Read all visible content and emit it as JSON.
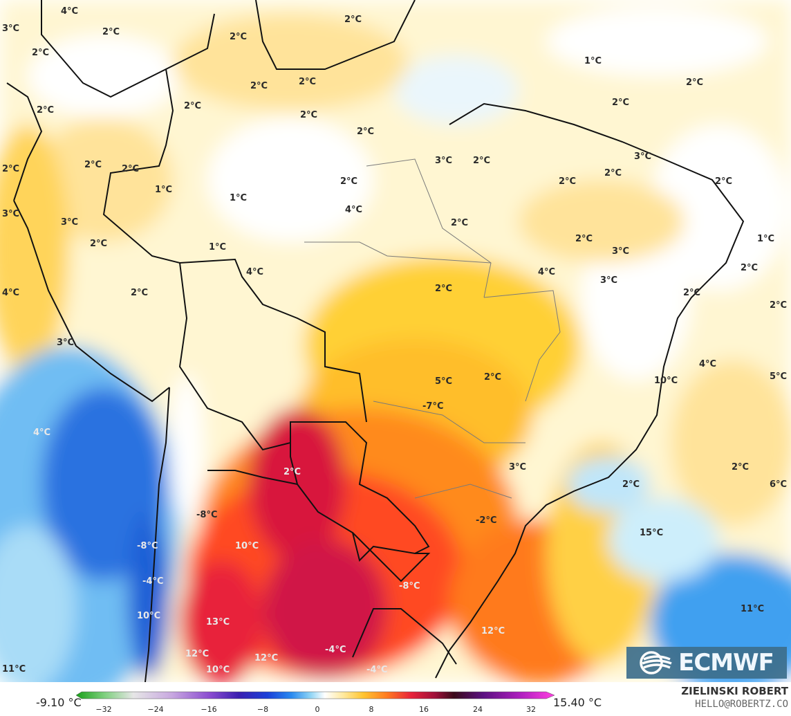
{
  "map": {
    "colors": {
      "ocean_cold_deep": "#1f5fd6",
      "ocean_cold": "#5aa8f0",
      "ocean_cool": "#a9dcf7",
      "neutral": "#ffffff",
      "warm_light": "#fff4c8",
      "warm": "#ffe08a",
      "warmer": "#ffc531",
      "orange": "#ff9a1f",
      "red_orange": "#ff5a22",
      "red": "#e8233a",
      "crimson": "#c80b4e",
      "border": "#111111"
    },
    "temperature_labels": [
      {
        "text": "4°C",
        "tone": "dark"
      },
      {
        "text": "3°C",
        "tone": "dark"
      },
      {
        "text": "2°C",
        "tone": "dark"
      },
      {
        "text": "2°C",
        "tone": "dark"
      },
      {
        "text": "2°C",
        "tone": "dark"
      },
      {
        "text": "2°C",
        "tone": "dark"
      },
      {
        "text": "1°C",
        "tone": "dark"
      },
      {
        "text": "2°C",
        "tone": "dark"
      },
      {
        "text": "2°C",
        "tone": "dark"
      },
      {
        "text": "2°C",
        "tone": "dark"
      },
      {
        "text": "2°C",
        "tone": "dark"
      },
      {
        "text": "2°C",
        "tone": "dark"
      },
      {
        "text": "2°C",
        "tone": "dark"
      },
      {
        "text": "2°C",
        "tone": "dark"
      },
      {
        "text": "2°C",
        "tone": "dark"
      },
      {
        "text": "3°C",
        "tone": "dark"
      },
      {
        "text": "2°C",
        "tone": "dark"
      },
      {
        "text": "2°C",
        "tone": "dark"
      },
      {
        "text": "3°C",
        "tone": "dark"
      },
      {
        "text": "2°C",
        "tone": "dark"
      },
      {
        "text": "2°C",
        "tone": "dark"
      },
      {
        "text": "2°C",
        "tone": "dark"
      },
      {
        "text": "2°C",
        "tone": "dark"
      },
      {
        "text": "2°C",
        "tone": "dark"
      },
      {
        "text": "2°C",
        "tone": "dark"
      },
      {
        "text": "1°C",
        "tone": "dark"
      },
      {
        "text": "1°C",
        "tone": "dark"
      },
      {
        "text": "4°C",
        "tone": "dark"
      },
      {
        "text": "3°C",
        "tone": "dark"
      },
      {
        "text": "3°C",
        "tone": "dark"
      },
      {
        "text": "2°C",
        "tone": "dark"
      },
      {
        "text": "2°C",
        "tone": "dark"
      },
      {
        "text": "2°C",
        "tone": "dark"
      },
      {
        "text": "1°C",
        "tone": "dark"
      },
      {
        "text": "1°C",
        "tone": "dark"
      },
      {
        "text": "3°C",
        "tone": "dark"
      },
      {
        "text": "2°C",
        "tone": "dark"
      },
      {
        "text": "4°C",
        "tone": "dark"
      },
      {
        "text": "4°C",
        "tone": "dark"
      },
      {
        "text": "3°C",
        "tone": "dark"
      },
      {
        "text": "2°C",
        "tone": "dark"
      },
      {
        "text": "2°C",
        "tone": "dark"
      },
      {
        "text": "4°C",
        "tone": "dark"
      },
      {
        "text": "2°C",
        "tone": "dark"
      },
      {
        "text": "2°C",
        "tone": "dark"
      },
      {
        "text": "3°C",
        "tone": "dark"
      },
      {
        "text": "4°C",
        "tone": "dark"
      },
      {
        "text": "5°C",
        "tone": "dark"
      },
      {
        "text": "5°C",
        "tone": "dark"
      },
      {
        "text": "2°C",
        "tone": "dark"
      },
      {
        "text": "-7°C",
        "tone": "light"
      },
      {
        "text": "10°C",
        "tone": "light"
      },
      {
        "text": "4°C",
        "tone": "dark"
      },
      {
        "text": "2°C",
        "tone": "dark"
      },
      {
        "text": "3°C",
        "tone": "dark"
      },
      {
        "text": "2°C",
        "tone": "dark"
      },
      {
        "text": "6°C",
        "tone": "dark"
      },
      {
        "text": "2°C",
        "tone": "dark"
      },
      {
        "text": "-2°C",
        "tone": "dark"
      },
      {
        "text": "-8°C",
        "tone": "light"
      },
      {
        "text": "15°C",
        "tone": "light"
      },
      {
        "text": "-8°C",
        "tone": "light"
      },
      {
        "text": "10°C",
        "tone": "light"
      },
      {
        "text": "-4°C",
        "tone": "dark"
      },
      {
        "text": "-8°C",
        "tone": "light"
      },
      {
        "text": "11°C",
        "tone": "light"
      },
      {
        "text": "10°C",
        "tone": "light"
      },
      {
        "text": "13°C",
        "tone": "light"
      },
      {
        "text": "12°C",
        "tone": "light"
      },
      {
        "text": "12°C",
        "tone": "light"
      },
      {
        "text": "-4°C",
        "tone": "dark"
      },
      {
        "text": "12°C",
        "tone": "light"
      },
      {
        "text": "11°C",
        "tone": "light"
      },
      {
        "text": "10°C",
        "tone": "light"
      },
      {
        "text": "-4°C",
        "tone": "dark"
      }
    ]
  },
  "logo": {
    "text": "ECMWF"
  },
  "colorbar": {
    "min_label": "-9.10 °C",
    "max_label": "15.40 °C",
    "ticks": [
      "−32",
      "−24",
      "−16",
      "−8",
      "0",
      "8",
      "16",
      "24",
      "32"
    ],
    "stops": [
      "#1aa01a",
      "#7fd07f",
      "#e6e6e6",
      "#c8a8e0",
      "#8a4bd0",
      "#3a1fb0",
      "#1a3fd8",
      "#2a8af0",
      "#8fd4f5",
      "#ffffff",
      "#ffe89a",
      "#ffc531",
      "#ff7a1f",
      "#e8233a",
      "#a0103a",
      "#3a0a1a",
      "#5a1080",
      "#b01fc0",
      "#ff3fe0"
    ]
  },
  "credit": {
    "name": "ZIELINSKI ROBERT",
    "email": "HELLO@ROBERTZ.CO"
  }
}
